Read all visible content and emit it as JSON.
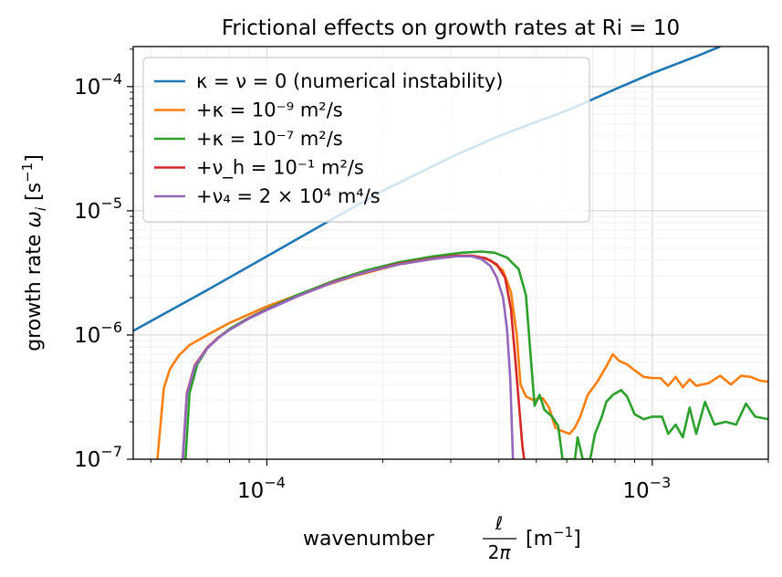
{
  "chart_data": {
    "type": "line",
    "title": "Frictional effects on growth rates at Ri = 10",
    "xlabel": "wavenumber ℓ/2π [m⁻¹]",
    "ylabel": "growth rate ω_i [s⁻¹]",
    "xscale": "log",
    "yscale": "log",
    "xlim": [
      4.5e-05,
      0.002
    ],
    "ylim": [
      1e-07,
      0.00021
    ],
    "grid": "on (major and minor)",
    "legend_position": "upper-left",
    "x_ticks": [
      {
        "value": 0.0001,
        "base": "10",
        "exp": "−4"
      },
      {
        "value": 0.001,
        "base": "10",
        "exp": "−3"
      }
    ],
    "y_ticks": [
      {
        "value": 1e-07,
        "base": "10",
        "exp": "−7"
      },
      {
        "value": 1e-06,
        "base": "10",
        "exp": "−6"
      },
      {
        "value": 1e-05,
        "base": "10",
        "exp": "−5"
      },
      {
        "value": 0.0001,
        "base": "10",
        "exp": "−4"
      }
    ],
    "series": [
      {
        "name": "κ = ν = 0 (numerical instability)",
        "color": "#1f77b4",
        "points": [
          [
            4.5e-05,
            1.08e-06
          ],
          [
            7e-05,
            2.3e-06
          ],
          [
            0.0001,
            4.3e-06
          ],
          [
            0.00015,
            8.8e-06
          ],
          [
            0.0002,
            1.45e-05
          ],
          [
            0.0003,
            2.7e-05
          ],
          [
            0.0004,
            4e-05
          ],
          [
            0.0005,
            5.2e-05
          ],
          [
            0.0006,
            6.4e-05
          ],
          [
            0.0007,
            7.9e-05
          ],
          [
            0.0008,
            9.5e-05
          ],
          [
            0.001,
            0.000128
          ],
          [
            0.0013,
            0.000175
          ],
          [
            0.0015,
            0.00021
          ]
        ]
      },
      {
        "name": "+κ = 10⁻⁹ m²/s",
        "color": "#ff7f0e",
        "points": [
          [
            5.2e-05,
            1e-07
          ],
          [
            5.4e-05,
            3.7e-07
          ],
          [
            5.6e-05,
            5.3e-07
          ],
          [
            5.9e-05,
            6.8e-07
          ],
          [
            6.3e-05,
            8.3e-07
          ],
          [
            7e-05,
            1e-06
          ],
          [
            8e-05,
            1.25e-06
          ],
          [
            0.0001,
            1.7e-06
          ],
          [
            0.00013,
            2.3e-06
          ],
          [
            0.00017,
            3e-06
          ],
          [
            0.00022,
            3.7e-06
          ],
          [
            0.00027,
            4.1e-06
          ],
          [
            0.00031,
            4.3e-06
          ],
          [
            0.00035,
            4.3e-06
          ],
          [
            0.00038,
            4e-06
          ],
          [
            0.00041,
            3.3e-06
          ],
          [
            0.00043,
            2.2e-06
          ],
          [
            0.000445,
            1e-06
          ],
          [
            0.000455,
            4e-07
          ],
          [
            0.00047,
            3.2e-07
          ],
          [
            0.00049,
            3e-07
          ],
          [
            0.00051,
            3.1e-07
          ],
          [
            0.00052,
            3.1e-07
          ],
          [
            0.00054,
            2.6e-07
          ],
          [
            0.00056,
            1.8e-07
          ],
          [
            0.00058,
            1.7e-07
          ],
          [
            0.00061,
            1.6e-07
          ],
          [
            0.00063,
            1.8e-07
          ],
          [
            0.00065,
            2.2e-07
          ],
          [
            0.00068,
            3.3e-07
          ],
          [
            0.00072,
            4.2e-07
          ],
          [
            0.00076,
            5.6e-07
          ],
          [
            0.00079,
            7e-07
          ],
          [
            0.00082,
            6.2e-07
          ],
          [
            0.00086,
            5.8e-07
          ],
          [
            0.0009,
            5.2e-07
          ],
          [
            0.00095,
            4.6e-07
          ],
          [
            0.001,
            4.5e-07
          ],
          [
            0.00105,
            4.5e-07
          ],
          [
            0.0011,
            3.9e-07
          ],
          [
            0.00115,
            4.6e-07
          ],
          [
            0.0012,
            3.8e-07
          ],
          [
            0.00125,
            4.4e-07
          ],
          [
            0.0013,
            3.9e-07
          ],
          [
            0.0014,
            4.1e-07
          ],
          [
            0.0015,
            4.7e-07
          ],
          [
            0.0016,
            4e-07
          ],
          [
            0.0017,
            4.7e-07
          ],
          [
            0.0018,
            4.6e-07
          ],
          [
            0.0019,
            4.3e-07
          ],
          [
            0.002,
            4.2e-07
          ]
        ]
      },
      {
        "name": "+κ = 10⁻⁷ m²/s",
        "color": "#2ca02c",
        "points": [
          [
            6.15e-05,
            1e-07
          ],
          [
            6.3e-05,
            3.4e-07
          ],
          [
            6.6e-05,
            5.8e-07
          ],
          [
            7e-05,
            7.8e-07
          ],
          [
            7.5e-05,
            9.6e-07
          ],
          [
            8e-05,
            1.12e-06
          ],
          [
            9e-05,
            1.38e-06
          ],
          [
            0.0001,
            1.62e-06
          ],
          [
            0.00012,
            2.1e-06
          ],
          [
            0.00015,
            2.75e-06
          ],
          [
            0.00018,
            3.3e-06
          ],
          [
            0.00022,
            3.85e-06
          ],
          [
            0.00027,
            4.3e-06
          ],
          [
            0.00032,
            4.6e-06
          ],
          [
            0.00036,
            4.7e-06
          ],
          [
            0.00039,
            4.6e-06
          ],
          [
            0.00042,
            4.2e-06
          ],
          [
            0.00045,
            3.4e-06
          ],
          [
            0.00047,
            2.1e-06
          ],
          [
            0.000485,
            6e-07
          ],
          [
            0.000495,
            2.7e-07
          ],
          [
            0.00051,
            3.3e-07
          ],
          [
            0.000525,
            2.5e-07
          ],
          [
            0.00055,
            2.2e-07
          ],
          [
            0.00057,
            1.85e-07
          ],
          [
            0.000585,
            1e-07
          ],
          [
            0.00063,
            1e-07
          ],
          [
            0.00064,
            1.5e-07
          ],
          [
            0.00066,
            1e-07
          ],
          [
            0.00069,
            1e-07
          ],
          [
            0.00071,
            1.6e-07
          ],
          [
            0.00074,
            2.2e-07
          ],
          [
            0.00076,
            2.9e-07
          ],
          [
            0.00079,
            3.3e-07
          ],
          [
            0.00083,
            3.6e-07
          ],
          [
            0.00086,
            3.2e-07
          ],
          [
            0.0009,
            2.3e-07
          ],
          [
            0.00095,
            2.1e-07
          ],
          [
            0.001,
            2.2e-07
          ],
          [
            0.00106,
            2.2e-07
          ],
          [
            0.0011,
            1.6e-07
          ],
          [
            0.00115,
            1.9e-07
          ],
          [
            0.0012,
            1.5e-07
          ],
          [
            0.00125,
            2.6e-07
          ],
          [
            0.0013,
            1.6e-07
          ],
          [
            0.00137,
            2.9e-07
          ],
          [
            0.00145,
            1.9e-07
          ],
          [
            0.00155,
            2e-07
          ],
          [
            0.00165,
            1.9e-07
          ],
          [
            0.00175,
            2.8e-07
          ],
          [
            0.00185,
            2.2e-07
          ],
          [
            0.002,
            2.1e-07
          ]
        ]
      },
      {
        "name": "+ν_h = 10⁻¹ m²/s",
        "color": "#d62728",
        "points": [
          [
            6.05e-05,
            1e-07
          ],
          [
            6.2e-05,
            3.4e-07
          ],
          [
            6.5e-05,
            5.7e-07
          ],
          [
            7e-05,
            7.9e-07
          ],
          [
            7.5e-05,
            9.6e-07
          ],
          [
            8e-05,
            1.1e-06
          ],
          [
            9e-05,
            1.37e-06
          ],
          [
            0.0001,
            1.6e-06
          ],
          [
            0.00012,
            2.05e-06
          ],
          [
            0.00015,
            2.7e-06
          ],
          [
            0.00018,
            3.2e-06
          ],
          [
            0.00022,
            3.75e-06
          ],
          [
            0.00027,
            4.15e-06
          ],
          [
            0.00031,
            4.35e-06
          ],
          [
            0.00034,
            4.35e-06
          ],
          [
            0.00037,
            4.15e-06
          ],
          [
            0.000395,
            3.7e-06
          ],
          [
            0.000415,
            2.9e-06
          ],
          [
            0.00043,
            1.6e-06
          ],
          [
            0.00044,
            7e-07
          ],
          [
            0.00045,
            3e-07
          ],
          [
            0.00046,
            1.3e-07
          ],
          [
            0.000465,
            1e-07
          ]
        ]
      },
      {
        "name": "+ν₄ = 2 × 10⁴ m⁴/s",
        "color": "#9467bd",
        "points": [
          [
            6.05e-05,
            1e-07
          ],
          [
            6.2e-05,
            3.3e-07
          ],
          [
            6.5e-05,
            5.6e-07
          ],
          [
            7e-05,
            7.8e-07
          ],
          [
            7.5e-05,
            9.5e-07
          ],
          [
            8e-05,
            1.1e-06
          ],
          [
            9e-05,
            1.36e-06
          ],
          [
            0.0001,
            1.59e-06
          ],
          [
            0.00012,
            2.05e-06
          ],
          [
            0.00015,
            2.68e-06
          ],
          [
            0.00018,
            3.2e-06
          ],
          [
            0.00022,
            3.7e-06
          ],
          [
            0.00027,
            4.1e-06
          ],
          [
            0.00031,
            4.3e-06
          ],
          [
            0.00034,
            4.3e-06
          ],
          [
            0.00036,
            4.1e-06
          ],
          [
            0.00038,
            3.6e-06
          ],
          [
            0.000395,
            2.9e-06
          ],
          [
            0.00041,
            2e-06
          ],
          [
            0.00042,
            1.1e-06
          ],
          [
            0.000428,
            4.5e-07
          ],
          [
            0.000435,
            1e-07
          ]
        ]
      }
    ]
  }
}
